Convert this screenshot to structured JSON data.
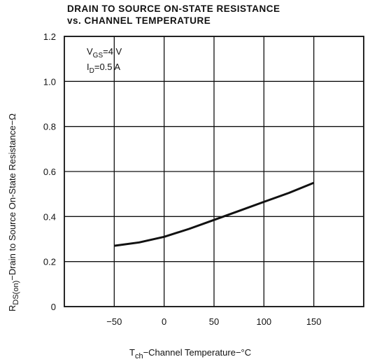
{
  "chart_data": {
    "type": "line",
    "title": [
      "DRAIN TO SOURCE ON-STATE RESISTANCE",
      "vs. CHANNEL TEMPERATURE"
    ],
    "x_label": {
      "symbol": "T",
      "subscript": "ch",
      "text": "−Channel Temperature−°C"
    },
    "y_label": {
      "symbol": "R",
      "subscript": "DS(on)",
      "text": "−Drain to Source On-State Resistance−Ω"
    },
    "annotations": [
      {
        "symbol": "V",
        "subscript": "GS",
        "text": "=4 V"
      },
      {
        "symbol": "I",
        "subscript": "D",
        "text": "=0.5 A"
      }
    ],
    "x": [
      -50,
      -25,
      0,
      25,
      50,
      75,
      100,
      125,
      150
    ],
    "values": [
      0.27,
      0.285,
      0.31,
      0.345,
      0.385,
      0.425,
      0.465,
      0.505,
      0.55
    ],
    "color": "#111111",
    "xlim": [
      -100,
      200
    ],
    "xticks": [
      {
        "value": -50,
        "label": "−50"
      },
      0,
      50,
      100,
      150
    ],
    "ylim": [
      0,
      1.2
    ],
    "yticks": [
      0,
      0.2,
      0.4,
      0.6,
      0.8,
      {
        "value": 1.0,
        "label": "1.0"
      },
      1.2
    ],
    "grid": true
  }
}
